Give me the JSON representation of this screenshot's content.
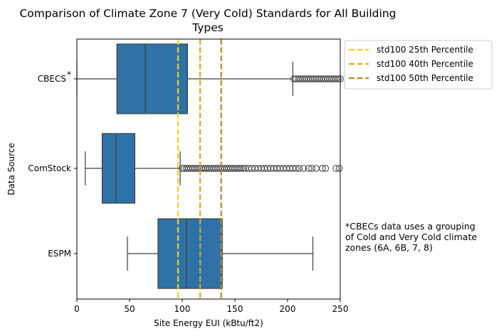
{
  "chart_data": {
    "type": "box",
    "title_lines": [
      "Comparison of Climate Zone 7 (Very Cold) Standards for All Building",
      "Types"
    ],
    "xlabel": "Site Energy EUI (kBtu/ft2)",
    "ylabel": "Data Source",
    "xlim": [
      0,
      250
    ],
    "xticks": [
      0,
      50,
      100,
      150,
      200,
      250
    ],
    "categories": [
      "CBECS",
      "ComStock",
      "ESPM"
    ],
    "category_marks": [
      "*",
      "",
      ""
    ],
    "box_color": "#2f72a8",
    "boxes": [
      {
        "name": "CBECS",
        "whisker_low": 0,
        "q1": 38,
        "median": 65,
        "q3": 105,
        "whisker_high": 205,
        "outliers": [
          206,
          208,
          210,
          212,
          214,
          216,
          218,
          220,
          222,
          224,
          226,
          228,
          230,
          232,
          234,
          236,
          238,
          240,
          242,
          244,
          246,
          248,
          250
        ]
      },
      {
        "name": "ComStock",
        "whisker_low": 8,
        "q1": 24,
        "median": 37,
        "q3": 55,
        "whisker_high": 98,
        "outliers": [
          100,
          102,
          104,
          106,
          108,
          110,
          112,
          114,
          116,
          118,
          120,
          122,
          124,
          126,
          128,
          130,
          132,
          134,
          136,
          138,
          140,
          142,
          144,
          146,
          148,
          150,
          152,
          154,
          156,
          158,
          160,
          163,
          166,
          169,
          172,
          175,
          178,
          181,
          184,
          187,
          190,
          193,
          196,
          199,
          202,
          205,
          208,
          211,
          215,
          220,
          223,
          227,
          233,
          236,
          246,
          249
        ]
      },
      {
        "name": "ESPM",
        "whisker_low": 48,
        "q1": 77,
        "median": 104,
        "q3": 138,
        "whisker_high": 224,
        "outliers": []
      }
    ],
    "reference_lines": [
      {
        "name": "std100 25th Percentile",
        "value": 96,
        "color": "#f5d21c"
      },
      {
        "name": "std100 40th Percentile",
        "value": 117,
        "color": "#ddaa22"
      },
      {
        "name": "std100 50th Percentile",
        "value": 137,
        "color": "#c08a1e"
      }
    ],
    "legend_position": "upper right, outside plot",
    "grid": false
  },
  "note": {
    "lines": [
      "*CBECs data uses a grouping",
      "of Cold and Very Cold climate",
      "zones (6A, 6B, 7, 8)"
    ]
  }
}
